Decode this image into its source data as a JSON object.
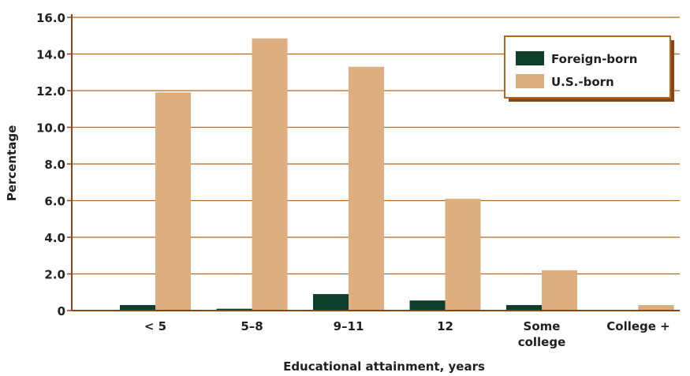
{
  "chart_data": {
    "type": "bar",
    "xlabel": "Educational attainment, years",
    "ylabel": "Percentage",
    "ylim": [
      0,
      16
    ],
    "yticks": [
      "0",
      "2.0",
      "4.0",
      "6.0",
      "8.0",
      "10.0",
      "12.0",
      "14.0",
      "16.0"
    ],
    "ytick_values": [
      0,
      2,
      4,
      6,
      8,
      10,
      12,
      14,
      16
    ],
    "categories": [
      [
        "< 5"
      ],
      [
        "5–8"
      ],
      [
        "9–11"
      ],
      [
        "12"
      ],
      [
        "Some",
        "college"
      ],
      [
        "College +"
      ]
    ],
    "series": [
      {
        "name": "Foreign-born",
        "color": "#0d3d2b",
        "values": [
          0.3,
          0.1,
          0.9,
          0.55,
          0.3,
          0.0
        ]
      },
      {
        "name": "U.S.-born",
        "color": "#dcae80",
        "values": [
          11.9,
          14.85,
          13.3,
          6.1,
          2.2,
          0.3
        ]
      }
    ],
    "grid": true,
    "legend_position": "top-right",
    "colors": {
      "axis": "#8b4513",
      "gridline": "#b5651d",
      "legend_border": "#b5651d",
      "legend_shadow": "#8b4513"
    }
  }
}
